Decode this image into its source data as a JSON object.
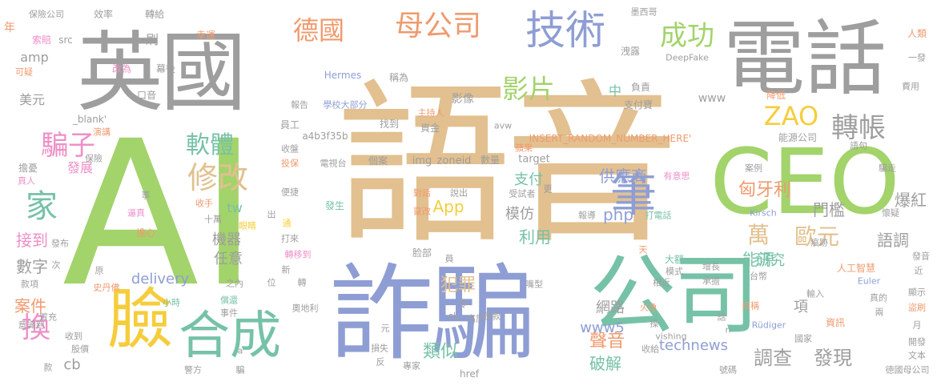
{
  "palette": {
    "gray": "#9e9e9e",
    "tan": "#e2c08f",
    "green": "#a3d36b",
    "periwinkle": "#8e9ed4",
    "teal": "#76c2a7",
    "orange": "#f09a6e",
    "yellow": "#f5cd3c",
    "pink": "#ee8fc8"
  },
  "words": [
    "語音",
    "AI",
    "詐騙",
    "CEO",
    "英國",
    "電話",
    "公司",
    "臉",
    "合成",
    "技術",
    "母公司",
    "德國",
    "成功",
    "影片",
    "轉帳",
    "ZAO",
    "軟體",
    "修改",
    "騙子",
    "家",
    "筆",
    "萬",
    "歐元",
    "換",
    "類似",
    "聲音",
    "調查",
    "發現",
    "technews",
    "破解",
    "供應商",
    "php",
    "匈牙利",
    "門檻",
    "爆紅",
    "模仿",
    "App",
    "利用",
    "能源",
    "語調",
    "研究",
    "網路",
    "www5",
    "項",
    "犯罪",
    "delivery",
    "機器",
    "任意",
    "接到",
    "數字",
    "案件",
    "cb",
    "美元",
    "amp",
    "src",
    "刷",
    "年",
    "保險公司",
    "效率",
    "轉給",
    "墨西哥",
    "人類",
    "一發",
    "索賠",
    "幸運",
    "洩露",
    "DeepFake",
    "可疑",
    "改為",
    "幕後",
    "Hermes",
    "稱為",
    "口音",
    "影像",
    "中",
    "負責",
    "支付寶",
    "www",
    "降低",
    "費用",
    "報告",
    "學校大部分",
    "主持人",
    "資金",
    "找到",
    "員工",
    "a4b3f35b",
    "avw",
    "INSERT_RANDOM_NUMBER_HERE'",
    "能源公司",
    "語句",
    "收盤",
    "電視台",
    "投保",
    "個案",
    "img",
    "zoneid",
    "target",
    "數量",
    "蘋果",
    "支付",
    "案例",
    "騙走",
    "有意思",
    "_blank'",
    "演講",
    "發展",
    "擔憂",
    "真人",
    "保險",
    "事",
    "便捷",
    "對話",
    "說出",
    "竄改",
    "受試者",
    "更",
    "報導",
    "打電話",
    "Kirsch",
    "懷疑",
    "收手",
    "逼真",
    "十萬",
    "tw",
    "眼睛",
    "出",
    "通",
    "發生",
    "擔心",
    "打來",
    "轉移到",
    "脸部",
    "員",
    "天",
    "大額",
    "模式",
    "增長",
    "相近",
    "承擔",
    "人工智慧",
    "Euler",
    "台幣",
    "痕跡",
    "發音",
    "近",
    "顯示",
    "盜刷",
    "月",
    "開發",
    "文本",
    "德國母公司",
    "兩",
    "真的",
    "Rüdiger",
    "資訊",
    "自稱",
    "n",
    "輸入",
    "話",
    "操",
    "火急",
    "國家",
    "收給",
    "vishing",
    "號碼",
    "嘴型",
    "匯款",
    "高於",
    "ck",
    "令",
    "元",
    "損失",
    "反",
    "專家",
    "href",
    "奧地利",
    "之內",
    "位",
    "轉",
    "小時",
    "償還",
    "事件",
    "警方",
    "a",
    "騙",
    "冒充",
    "意識到",
    "收到",
    "股價",
    "次",
    "款項",
    "原",
    "史丹佛",
    "發布",
    "新",
    "款"
  ]
}
